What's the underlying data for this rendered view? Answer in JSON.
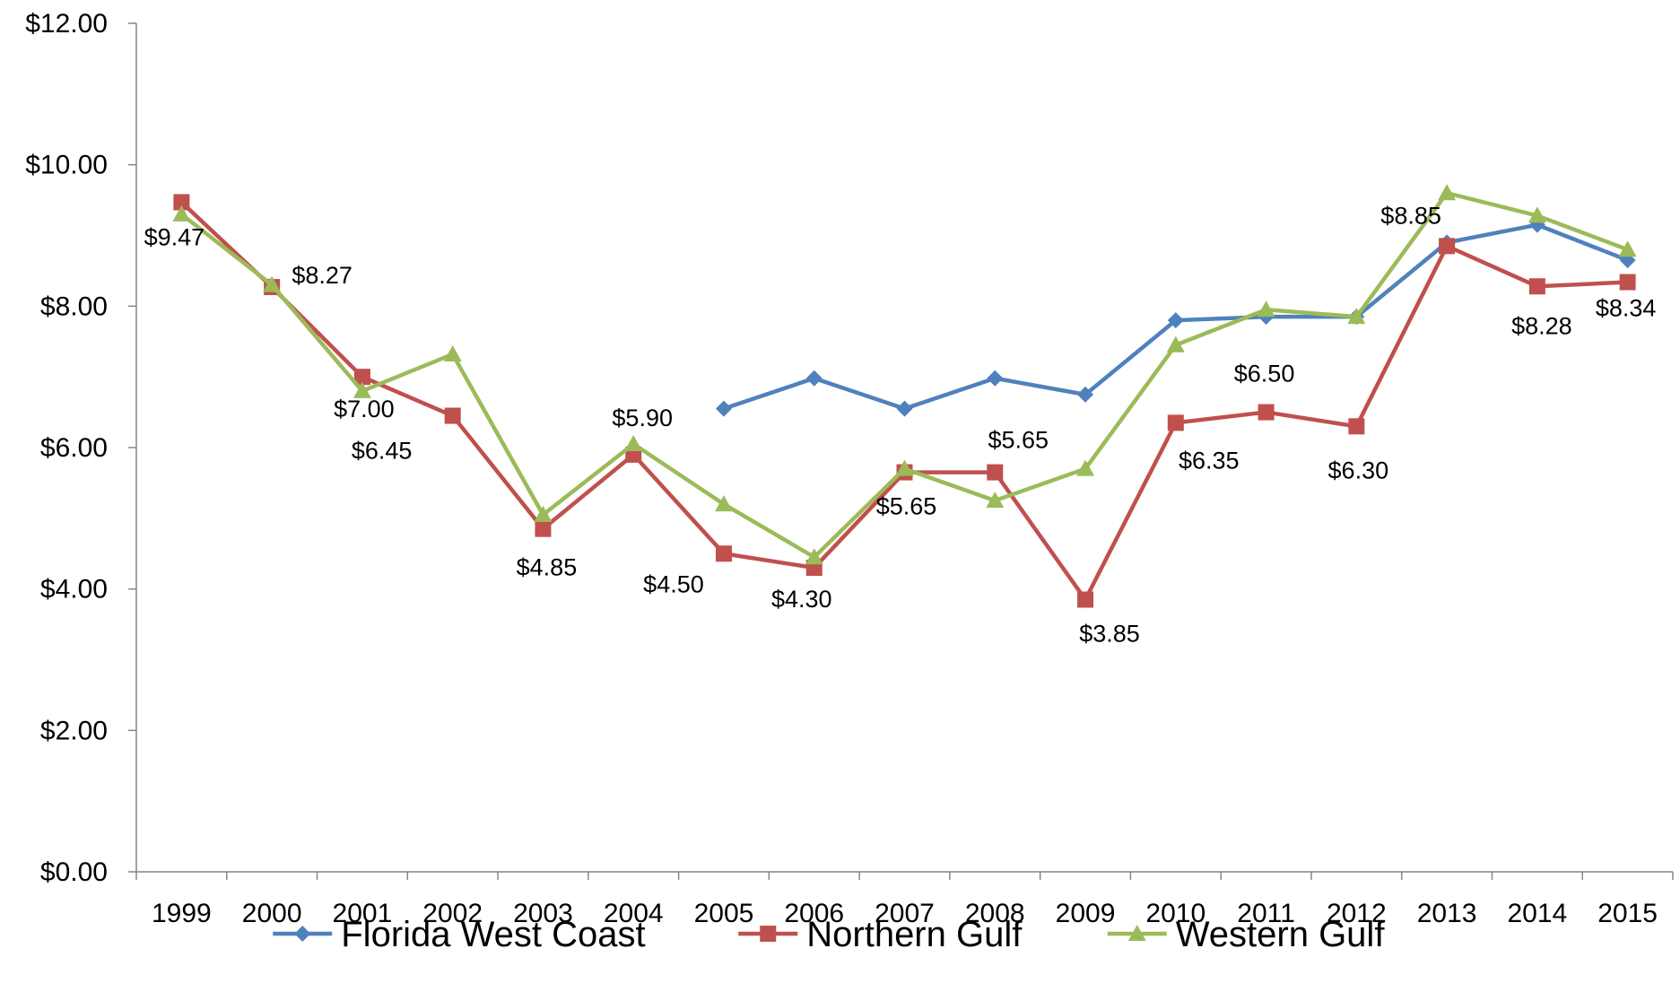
{
  "chart_data": {
    "type": "line",
    "title": "",
    "xlabel": "",
    "ylabel": "",
    "categories": [
      "1999",
      "2000",
      "2001",
      "2002",
      "2003",
      "2004",
      "2005",
      "2006",
      "2007",
      "2008",
      "2009",
      "2010",
      "2011",
      "2012",
      "2013",
      "2014",
      "2015"
    ],
    "ylim": [
      0,
      12
    ],
    "yticks": [
      0,
      2,
      4,
      6,
      8,
      10,
      12
    ],
    "ytick_labels": [
      "$0.00",
      "$2.00",
      "$4.00",
      "$6.00",
      "$8.00",
      "$10.00",
      "$12.00"
    ],
    "grid": false,
    "legend_position": "bottom",
    "series": [
      {
        "name": "Florida West Coast",
        "color": "#4F81BD",
        "marker": "diamond",
        "values": [
          null,
          null,
          null,
          null,
          null,
          null,
          6.55,
          6.98,
          6.55,
          6.98,
          6.75,
          7.8,
          7.85,
          7.85,
          8.9,
          9.15,
          8.65
        ]
      },
      {
        "name": "Northern Gulf",
        "color": "#C0504D",
        "marker": "square",
        "values": [
          9.47,
          8.27,
          7.0,
          6.45,
          4.85,
          5.9,
          4.5,
          4.3,
          5.65,
          5.65,
          3.85,
          6.35,
          6.5,
          6.3,
          8.85,
          8.28,
          8.34
        ]
      },
      {
        "name": "Western Gulf",
        "color": "#9BBB59",
        "marker": "triangle",
        "values": [
          9.3,
          8.3,
          6.8,
          7.32,
          5.05,
          6.05,
          5.2,
          4.45,
          5.7,
          5.25,
          5.7,
          7.45,
          7.95,
          7.85,
          9.6,
          9.28,
          8.8
        ]
      }
    ],
    "data_labels": [
      {
        "series": "Northern Gulf",
        "index": 0,
        "text": "$9.47"
      },
      {
        "series": "Northern Gulf",
        "index": 1,
        "text": "$8.27"
      },
      {
        "series": "Northern Gulf",
        "index": 2,
        "text": "$7.00"
      },
      {
        "series": "Northern Gulf",
        "index": 3,
        "text": "$6.45"
      },
      {
        "series": "Northern Gulf",
        "index": 4,
        "text": "$4.85"
      },
      {
        "series": "Northern Gulf",
        "index": 5,
        "text": "$5.90"
      },
      {
        "series": "Northern Gulf",
        "index": 6,
        "text": "$4.50"
      },
      {
        "series": "Northern Gulf",
        "index": 7,
        "text": "$4.30"
      },
      {
        "series": "Northern Gulf",
        "index": 8,
        "text": "$5.65"
      },
      {
        "series": "Northern Gulf",
        "index": 9,
        "text": "$5.65"
      },
      {
        "series": "Northern Gulf",
        "index": 10,
        "text": "$3.85"
      },
      {
        "series": "Northern Gulf",
        "index": 11,
        "text": "$6.35"
      },
      {
        "series": "Northern Gulf",
        "index": 12,
        "text": "$6.50"
      },
      {
        "series": "Northern Gulf",
        "index": 13,
        "text": "$6.30"
      },
      {
        "series": "Northern Gulf",
        "index": 14,
        "text": "$8.85"
      },
      {
        "series": "Northern Gulf",
        "index": 15,
        "text": "$8.28"
      },
      {
        "series": "Northern Gulf",
        "index": 16,
        "text": "$8.34"
      }
    ]
  }
}
